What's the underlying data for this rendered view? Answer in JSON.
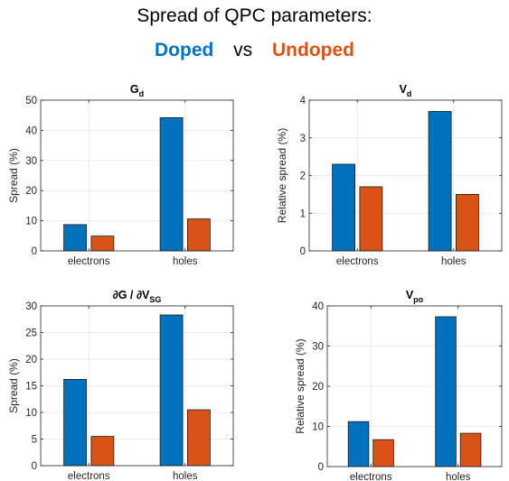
{
  "header": {
    "title": "Spread of QPC parameters:",
    "legend_doped": "Doped",
    "legend_vs": "vs",
    "legend_undoped": "Undoped"
  },
  "colors": {
    "doped": "#0072BD",
    "undoped": "#D95319",
    "axis": "#262626",
    "grid": "#ebebeb"
  },
  "chart_data": [
    {
      "type": "bar",
      "title_main": "G",
      "title_sub": "d",
      "title_prefix": "",
      "ylabel": "Spread (%)",
      "categories": [
        "electrons",
        "holes"
      ],
      "series": [
        {
          "name": "Doped",
          "values": [
            8.7,
            44.2
          ]
        },
        {
          "name": "Undoped",
          "values": [
            4.9,
            10.6
          ]
        }
      ],
      "ylim": [
        0,
        50
      ],
      "yticks": [
        "0",
        "10",
        "20",
        "30",
        "40",
        "50"
      ],
      "grid": true
    },
    {
      "type": "bar",
      "title_main": "V",
      "title_sub": "d",
      "title_prefix": "",
      "ylabel": "Relative spread (%)",
      "categories": [
        "electrons",
        "holes"
      ],
      "series": [
        {
          "name": "Doped",
          "values": [
            2.3,
            3.7
          ]
        },
        {
          "name": "Undoped",
          "values": [
            1.7,
            1.5
          ]
        }
      ],
      "ylim": [
        0,
        4
      ],
      "yticks": [
        "0",
        "1",
        "2",
        "3",
        "4"
      ],
      "grid": true
    },
    {
      "type": "bar",
      "title_main": "∂G / ∂V",
      "title_sub": "SG",
      "title_prefix": "",
      "ylabel": "Spread (%)",
      "categories": [
        "electrons",
        "holes"
      ],
      "series": [
        {
          "name": "Doped",
          "values": [
            16.2,
            28.3
          ]
        },
        {
          "name": "Undoped",
          "values": [
            5.5,
            10.5
          ]
        }
      ],
      "ylim": [
        0,
        30
      ],
      "yticks": [
        "0",
        "5",
        "10",
        "15",
        "20",
        "25",
        "30"
      ],
      "grid": true
    },
    {
      "type": "bar",
      "title_main": "V",
      "title_sub": "po",
      "title_prefix": "",
      "ylabel": "Relative spread (%)",
      "categories": [
        "electrons",
        "holes"
      ],
      "series": [
        {
          "name": "Doped",
          "values": [
            11.2,
            37.3
          ]
        },
        {
          "name": "Undoped",
          "values": [
            6.7,
            8.3
          ]
        }
      ],
      "ylim": [
        0,
        40
      ],
      "yticks": [
        "0",
        "10",
        "20",
        "30",
        "40"
      ],
      "grid": true
    }
  ]
}
